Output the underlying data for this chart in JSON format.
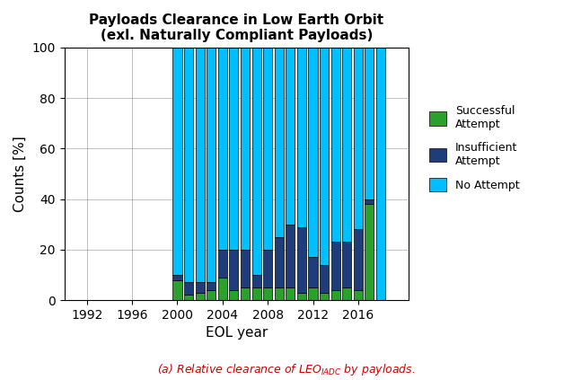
{
  "years": [
    2000,
    2001,
    2002,
    2003,
    2004,
    2005,
    2006,
    2007,
    2008,
    2009,
    2010,
    2011,
    2012,
    2013,
    2014,
    2015,
    2016,
    2017,
    2018
  ],
  "successful": [
    8,
    2,
    3,
    4,
    9,
    4,
    5,
    5,
    5,
    5,
    5,
    3,
    5,
    3,
    4,
    5,
    4,
    38,
    0
  ],
  "insufficient": [
    2,
    5,
    4,
    3,
    11,
    16,
    15,
    5,
    15,
    20,
    25,
    26,
    12,
    11,
    19,
    18,
    24,
    2,
    0
  ],
  "no_attempt": [
    90,
    93,
    93,
    93,
    80,
    80,
    80,
    90,
    80,
    75,
    70,
    71,
    83,
    86,
    77,
    77,
    72,
    60,
    100
  ],
  "color_successful": "#2ca02c",
  "color_insufficient": "#1f3d7a",
  "color_no_attempt": "#00bfff",
  "title_line1": "Payloads Clearance in Low Earth Orbit",
  "title_line2": "(exl. Naturally Compliant Payloads)",
  "xlabel": "EOL year",
  "ylabel": "Counts [%]",
  "ylim": [
    0,
    100
  ],
  "xlim": [
    1990,
    2020.5
  ],
  "xtick_positions": [
    1992,
    1996,
    2000,
    2004,
    2008,
    2012,
    2016
  ],
  "xtick_labels": [
    "1992",
    "1996",
    "2000",
    "2004",
    "2008",
    "2012",
    "2016"
  ],
  "ytick_positions": [
    0,
    20,
    40,
    60,
    80,
    100
  ],
  "ytick_labels": [
    "0",
    "20",
    "40",
    "60",
    "80",
    "100"
  ],
  "bar_width": 0.8,
  "legend_label_successful": "Successful\nAttempt",
  "legend_label_insufficient": "Insufficient\nAttempt",
  "legend_label_no_attempt": "No Attempt",
  "caption_color": "#cc0000"
}
